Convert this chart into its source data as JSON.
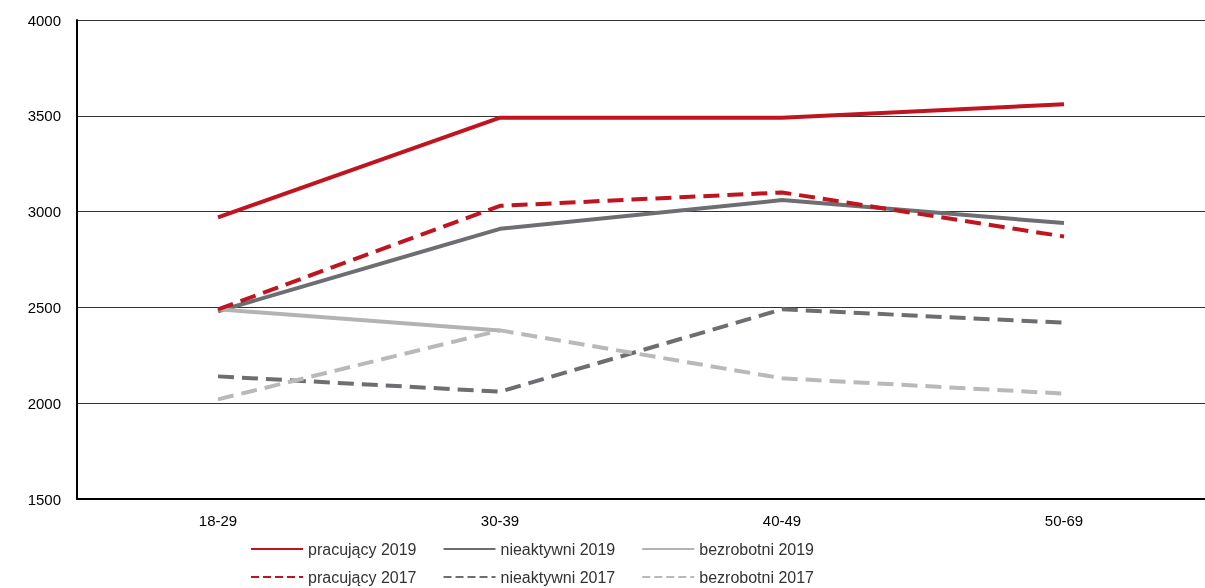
{
  "chart_data": {
    "type": "line",
    "categories": [
      "18-29",
      "30-39",
      "40-49",
      "50-69"
    ],
    "series": [
      {
        "name": "pracujący 2019",
        "color": "#c0141f",
        "line_style": "solid",
        "values": [
          2970,
          3490,
          3490,
          3560
        ]
      },
      {
        "name": "nieaktywni 2019",
        "color": "#6d6e71",
        "line_style": "solid",
        "values": [
          2480,
          2910,
          3060,
          2940
        ]
      },
      {
        "name": "bezrobotni 2019",
        "color": "#b3b3b3",
        "line_style": "solid",
        "values": [
          2490,
          2380,
          null,
          null
        ]
      },
      {
        "name": "pracujący 2017",
        "color": "#c0141f",
        "line_style": "dashed",
        "values": [
          2490,
          3030,
          3100,
          2870
        ]
      },
      {
        "name": "nieaktywni 2017",
        "color": "#6d6e71",
        "line_style": "dashed",
        "values": [
          2140,
          2060,
          2490,
          2420
        ]
      },
      {
        "name": "bezrobotni 2017",
        "color": "#b9b9b9",
        "line_style": "dashed",
        "values": [
          2020,
          2380,
          2130,
          2050
        ]
      }
    ],
    "ylim": [
      1500,
      4000
    ],
    "yticks": [
      1500,
      2000,
      2500,
      3000,
      3500,
      4000
    ],
    "grid": "y",
    "legend": "bottom",
    "marker": "none"
  }
}
